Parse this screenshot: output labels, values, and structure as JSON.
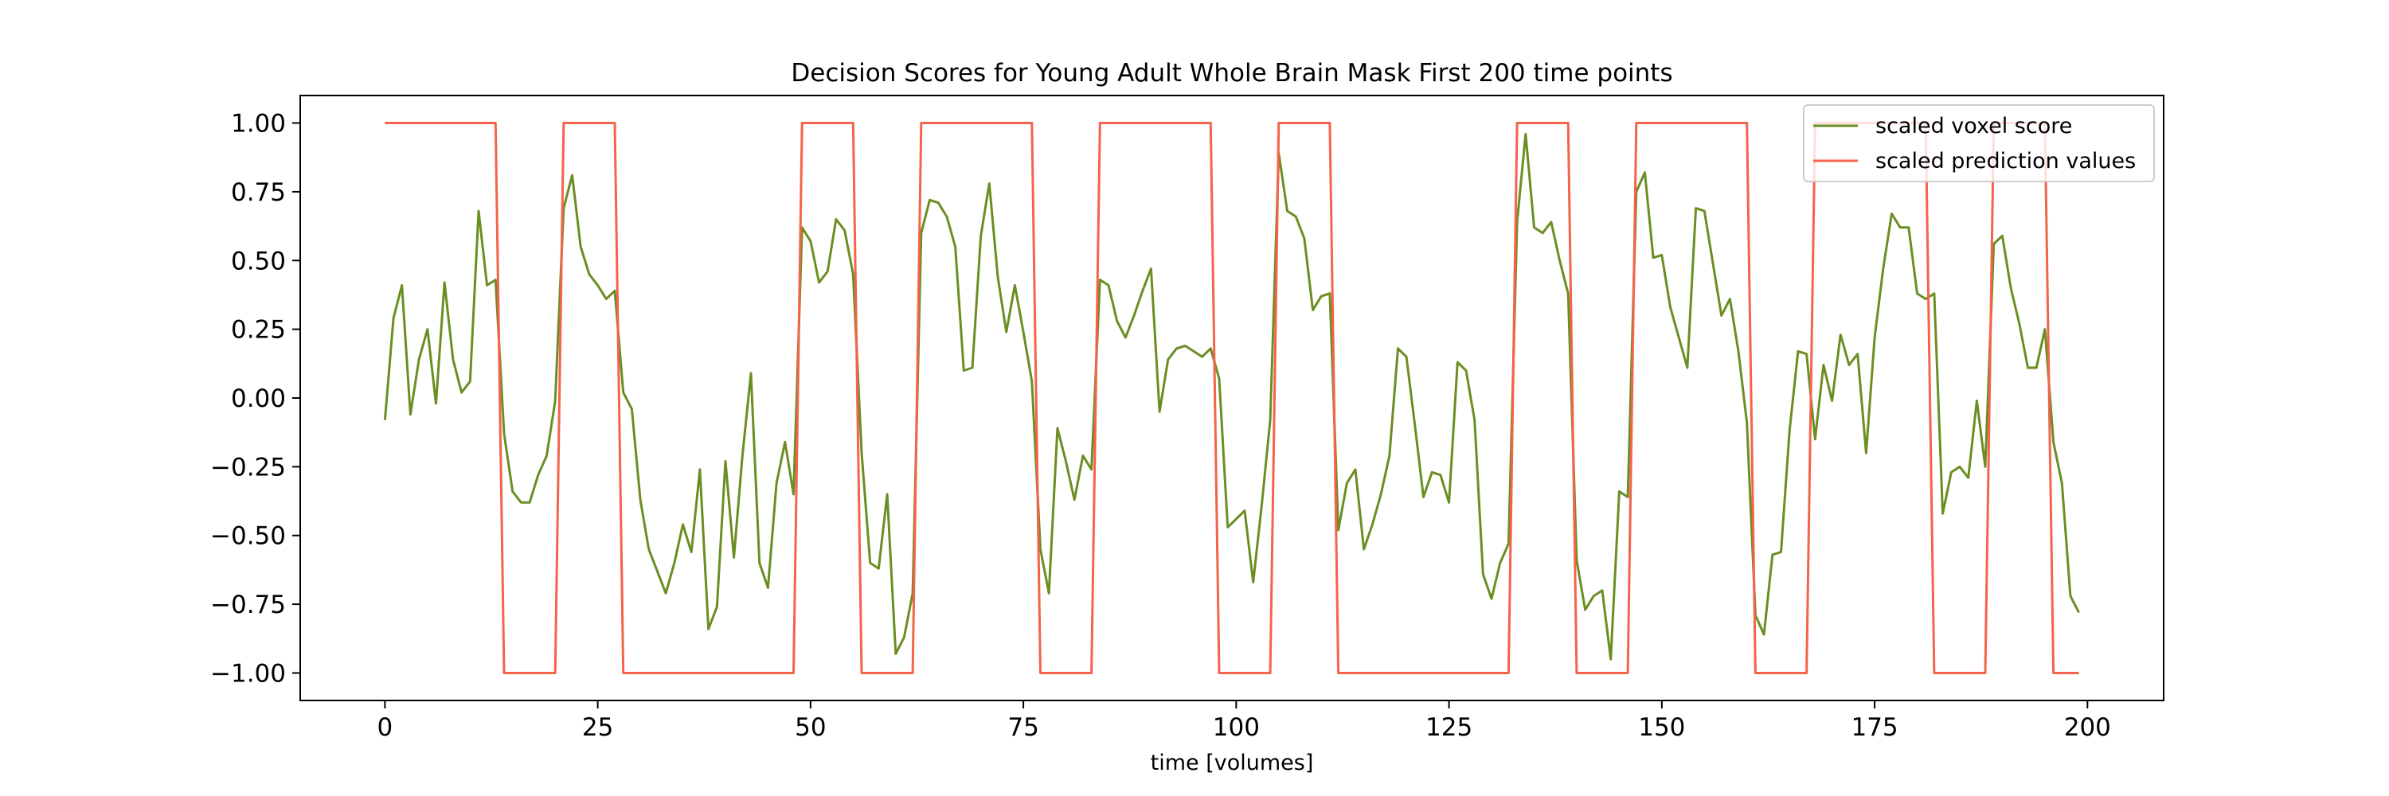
{
  "chart_data": {
    "type": "line",
    "title": "Decision Scores for Young Adult Whole Brain Mask First 200 time points",
    "xlabel": "time [volumes]",
    "ylabel": "",
    "xlim": [
      -9.95,
      208.95
    ],
    "ylim": [
      -1.1,
      1.1
    ],
    "xticks": [
      0,
      25,
      50,
      75,
      100,
      125,
      150,
      175,
      200
    ],
    "xtick_labels": [
      "0",
      "25",
      "50",
      "75",
      "100",
      "125",
      "150",
      "175",
      "200"
    ],
    "yticks": [
      1.0,
      0.75,
      0.5,
      0.25,
      0.0,
      -0.25,
      -0.5,
      -0.75,
      -1.0
    ],
    "ytick_labels": [
      "1.00",
      "0.75",
      "0.50",
      "0.25",
      "0.00",
      "−0.25",
      "−0.50",
      "−0.75",
      "−1.00"
    ],
    "grid": false,
    "legend": {
      "position": "top-right",
      "entries": [
        "scaled voxel score",
        "scaled prediction values"
      ]
    },
    "x": [
      0,
      1,
      2,
      3,
      4,
      5,
      6,
      7,
      8,
      9,
      10,
      11,
      12,
      13,
      14,
      15,
      16,
      17,
      18,
      19,
      20,
      21,
      22,
      23,
      24,
      25,
      26,
      27,
      28,
      29,
      30,
      31,
      32,
      33,
      34,
      35,
      36,
      37,
      38,
      39,
      40,
      41,
      42,
      43,
      44,
      45,
      46,
      47,
      48,
      49,
      50,
      51,
      52,
      53,
      54,
      55,
      56,
      57,
      58,
      59,
      60,
      61,
      62,
      63,
      64,
      65,
      66,
      67,
      68,
      69,
      70,
      71,
      72,
      73,
      74,
      75,
      76,
      77,
      78,
      79,
      80,
      81,
      82,
      83,
      84,
      85,
      86,
      87,
      88,
      89,
      90,
      91,
      92,
      93,
      94,
      95,
      96,
      97,
      98,
      99,
      100,
      101,
      102,
      103,
      104,
      105,
      106,
      107,
      108,
      109,
      110,
      111,
      112,
      113,
      114,
      115,
      116,
      117,
      118,
      119,
      120,
      121,
      122,
      123,
      124,
      125,
      126,
      127,
      128,
      129,
      130,
      131,
      132,
      133,
      134,
      135,
      136,
      137,
      138,
      139,
      140,
      141,
      142,
      143,
      144,
      145,
      146,
      147,
      148,
      149,
      150,
      151,
      152,
      153,
      154,
      155,
      156,
      157,
      158,
      159,
      160,
      161,
      162,
      163,
      164,
      165,
      166,
      167,
      168,
      169,
      170,
      171,
      172,
      173,
      174,
      175,
      176,
      177,
      178,
      179,
      180,
      181,
      182,
      183,
      184,
      185,
      186,
      187,
      188,
      189,
      190,
      191,
      192,
      193,
      194,
      195,
      196,
      197,
      198,
      199
    ],
    "series": [
      {
        "name": "scaled voxel score",
        "color": "#6b8e23",
        "values": [
          -0.08,
          0.29,
          0.41,
          -0.06,
          0.14,
          0.25,
          -0.02,
          0.42,
          0.14,
          0.02,
          0.06,
          0.68,
          0.41,
          0.43,
          -0.13,
          -0.34,
          -0.38,
          -0.38,
          -0.28,
          -0.21,
          -0.01,
          0.69,
          0.81,
          0.55,
          0.45,
          0.41,
          0.36,
          0.39,
          0.02,
          -0.04,
          -0.37,
          -0.55,
          -0.63,
          -0.71,
          -0.6,
          -0.46,
          -0.56,
          -0.26,
          -0.84,
          -0.76,
          -0.23,
          -0.58,
          -0.21,
          0.09,
          -0.6,
          -0.69,
          -0.31,
          -0.16,
          -0.35,
          0.62,
          0.57,
          0.42,
          0.46,
          0.65,
          0.61,
          0.45,
          -0.2,
          -0.6,
          -0.62,
          -0.35,
          -0.93,
          -0.87,
          -0.71,
          0.6,
          0.72,
          0.71,
          0.66,
          0.55,
          0.1,
          0.11,
          0.59,
          0.78,
          0.44,
          0.24,
          0.41,
          0.24,
          0.06,
          -0.55,
          -0.71,
          -0.11,
          -0.23,
          -0.37,
          -0.21,
          -0.26,
          0.43,
          0.41,
          0.28,
          0.22,
          0.3,
          0.39,
          0.47,
          -0.05,
          0.14,
          0.18,
          0.19,
          0.17,
          0.15,
          0.18,
          0.07,
          -0.47,
          -0.44,
          -0.41,
          -0.67,
          -0.39,
          -0.08,
          0.89,
          0.68,
          0.66,
          0.58,
          0.32,
          0.37,
          0.38,
          -0.48,
          -0.31,
          -0.26,
          -0.55,
          -0.46,
          -0.35,
          -0.21,
          0.18,
          0.15,
          -0.1,
          -0.36,
          -0.27,
          -0.28,
          -0.38,
          0.13,
          0.1,
          -0.08,
          -0.64,
          -0.73,
          -0.6,
          -0.53,
          0.64,
          0.96,
          0.62,
          0.6,
          0.64,
          0.5,
          0.38,
          -0.59,
          -0.77,
          -0.72,
          -0.7,
          -0.95,
          -0.34,
          -0.36,
          0.75,
          0.82,
          0.51,
          0.52,
          0.33,
          0.22,
          0.11,
          0.69,
          0.68,
          0.49,
          0.3,
          0.36,
          0.17,
          -0.09,
          -0.79,
          -0.86,
          -0.57,
          -0.56,
          -0.12,
          0.17,
          0.16,
          -0.15,
          0.12,
          -0.01,
          0.23,
          0.12,
          0.16,
          -0.2,
          0.22,
          0.47,
          0.67,
          0.62,
          0.62,
          0.38,
          0.36,
          0.38,
          -0.42,
          -0.27,
          -0.25,
          -0.29,
          -0.01,
          -0.25,
          0.56,
          0.59,
          0.4,
          0.27,
          0.11,
          0.11,
          0.25,
          -0.16,
          -0.31,
          -0.72,
          -0.78
        ]
      },
      {
        "name": "scaled prediction values",
        "color": "#f4634a",
        "values": [
          1,
          1,
          1,
          1,
          1,
          1,
          1,
          1,
          1,
          1,
          1,
          1,
          1,
          1,
          -1,
          -1,
          -1,
          -1,
          -1,
          -1,
          -1,
          1,
          1,
          1,
          1,
          1,
          1,
          1,
          -1,
          -1,
          -1,
          -1,
          -1,
          -1,
          -1,
          -1,
          -1,
          -1,
          -1,
          -1,
          -1,
          -1,
          -1,
          -1,
          -1,
          -1,
          -1,
          -1,
          -1,
          1,
          1,
          1,
          1,
          1,
          1,
          1,
          -1,
          -1,
          -1,
          -1,
          -1,
          -1,
          -1,
          1,
          1,
          1,
          1,
          1,
          1,
          1,
          1,
          1,
          1,
          1,
          1,
          1,
          1,
          -1,
          -1,
          -1,
          -1,
          -1,
          -1,
          -1,
          1,
          1,
          1,
          1,
          1,
          1,
          1,
          1,
          1,
          1,
          1,
          1,
          1,
          1,
          -1,
          -1,
          -1,
          -1,
          -1,
          -1,
          -1,
          1,
          1,
          1,
          1,
          1,
          1,
          1,
          -1,
          -1,
          -1,
          -1,
          -1,
          -1,
          -1,
          -1,
          -1,
          -1,
          -1,
          -1,
          -1,
          -1,
          -1,
          -1,
          -1,
          -1,
          -1,
          -1,
          -1,
          1,
          1,
          1,
          1,
          1,
          1,
          1,
          -1,
          -1,
          -1,
          -1,
          -1,
          -1,
          -1,
          1,
          1,
          1,
          1,
          1,
          1,
          1,
          1,
          1,
          1,
          1,
          1,
          1,
          1,
          -1,
          -1,
          -1,
          -1,
          -1,
          -1,
          -1,
          1,
          1,
          1,
          1,
          1,
          1,
          1,
          1,
          1,
          1,
          1,
          1,
          1,
          1,
          -1,
          -1,
          -1,
          -1,
          -1,
          -1,
          -1,
          1,
          1,
          1,
          1,
          1,
          1,
          1,
          -1,
          -1,
          -1,
          -1
        ]
      }
    ]
  }
}
